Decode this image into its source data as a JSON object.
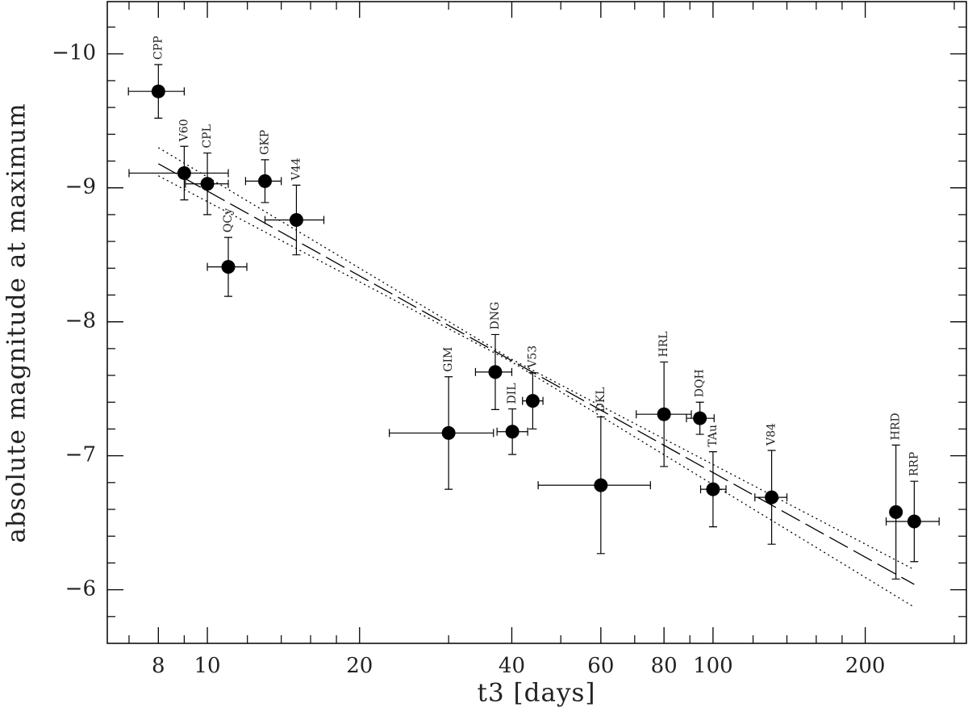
{
  "chart_data": {
    "type": "scatter",
    "x_label": "t3 [days]",
    "y_label": "absolute magnitude at maximum",
    "x_log": true,
    "xlim": [
      6.34,
      317
    ],
    "ylim": [
      -5.6,
      -10.39
    ],
    "xticks": [
      8,
      10,
      20,
      40,
      60,
      80,
      100,
      200
    ],
    "minor_xticks": [
      7,
      9,
      12,
      14,
      16,
      18,
      30,
      50,
      70,
      90,
      120,
      140,
      160,
      180,
      300
    ],
    "yticks": [
      {
        "value": -10,
        "label": "−10"
      },
      {
        "value": -9,
        "label": "−9"
      },
      {
        "value": -8,
        "label": "−8"
      },
      {
        "value": -7,
        "label": "−7"
      },
      {
        "value": -6,
        "label": "−6"
      }
    ],
    "minor_yticks": [
      -10.2,
      -9.8,
      -9.6,
      -9.4,
      -9.2,
      -8.8,
      -8.6,
      -8.4,
      -8.2,
      -7.8,
      -7.6,
      -7.4,
      -7.2,
      -6.8,
      -6.6,
      -6.4,
      -6.2,
      -5.8
    ],
    "color": "#000000",
    "series": [
      {
        "labels": [
          "CPP",
          "V60",
          "CPL",
          "QCy",
          "GKP",
          "V44",
          "GIM",
          "DNG",
          "DIL",
          "V53",
          "DKL",
          "HRL",
          "DQH",
          "TAu",
          "V84",
          "HRD",
          "RRP"
        ],
        "x": [
          8,
          9,
          10,
          11,
          13,
          15,
          30,
          37.1,
          40.1,
          44,
          60,
          80,
          94.2,
          100,
          130.6,
          230,
          250
        ],
        "x_low": [
          6.98,
          7.0,
          9.05,
          10.0,
          11.9,
          13.0,
          22.9,
          33.9,
          37.4,
          42.0,
          45.1,
          70.5,
          88.6,
          94.5,
          121,
          null,
          220
        ],
        "x_high": [
          9.0,
          11.0,
          11.0,
          11.97,
          14.0,
          17.0,
          36.8,
          40.0,
          43.0,
          46.1,
          75.2,
          90.6,
          100.5,
          106.1,
          140,
          null,
          280
        ],
        "values": [
          -9.72,
          -9.11,
          -9.03,
          -8.41,
          -9.05,
          -8.76,
          -7.17,
          -7.625,
          -7.18,
          -7.41,
          -6.78,
          -7.31,
          -7.28,
          -6.75,
          -6.69,
          -6.58,
          -6.51
        ],
        "y_err": [
          0.2,
          0.2,
          0.23,
          0.22,
          0.16,
          0.26,
          0.42,
          0.28,
          0.17,
          0.21,
          0.51,
          0.39,
          0.12,
          0.28,
          0.35,
          0.5,
          0.3
        ]
      }
    ],
    "fits": [
      {
        "style": "dashed",
        "x": [
          8,
          40,
          250
        ],
        "values": [
          -9.18,
          -7.71,
          -6.04
        ]
      },
      {
        "style": "dotted",
        "x": [
          8,
          40,
          250
        ],
        "values": [
          -9.3,
          -7.72,
          -6.15
        ]
      },
      {
        "style": "dotted",
        "x": [
          8,
          40,
          250
        ],
        "values": [
          -9.09,
          -7.7,
          -5.87
        ]
      }
    ]
  }
}
